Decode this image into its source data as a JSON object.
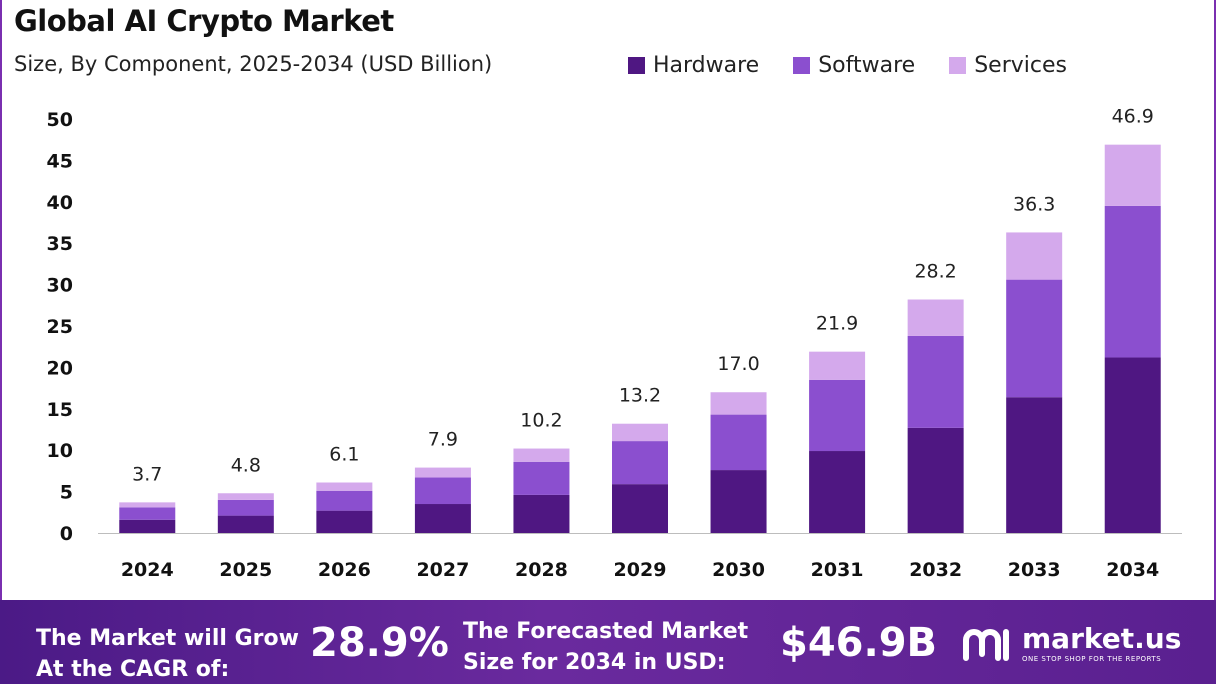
{
  "header": {
    "title": "Global AI Crypto Market",
    "subtitle": "Size, By Component, 2025-2034 (USD Billion)"
  },
  "chart_data": {
    "type": "bar",
    "stacked": true,
    "title": "Global AI Crypto Market",
    "subtitle": "Size, By Component, 2025-2034 (USD Billion)",
    "categories": [
      "2024",
      "2025",
      "2026",
      "2027",
      "2028",
      "2029",
      "2030",
      "2031",
      "2032",
      "2033",
      "2034"
    ],
    "series": [
      {
        "name": "Hardware",
        "color": "#4f1782",
        "values": [
          1.6,
          2.1,
          2.7,
          3.5,
          4.6,
          5.9,
          7.6,
          9.9,
          12.7,
          16.4,
          21.2
        ]
      },
      {
        "name": "Software",
        "color": "#8b4fcf",
        "values": [
          1.5,
          1.9,
          2.4,
          3.2,
          4.0,
          5.2,
          6.7,
          8.6,
          11.1,
          14.2,
          18.3
        ]
      },
      {
        "name": "Services",
        "color": "#d4a9ec",
        "values": [
          0.6,
          0.8,
          1.0,
          1.2,
          1.6,
          2.1,
          2.7,
          3.4,
          4.4,
          5.7,
          7.4
        ]
      }
    ],
    "totals": [
      "3.7",
      "4.8",
      "6.1",
      "7.9",
      "10.2",
      "13.2",
      "17.0",
      "21.9",
      "28.2",
      "36.3",
      "46.9"
    ],
    "yticks": [
      "0",
      "5",
      "10",
      "15",
      "20",
      "25",
      "30",
      "35",
      "40",
      "45",
      "50"
    ],
    "ylim": [
      0,
      50
    ],
    "xlabel": "",
    "ylabel": "",
    "grid": false,
    "legend_position": "top-right"
  },
  "footer": {
    "cagr_label_1": "The Market will Grow",
    "cagr_label_2": "At the CAGR of:",
    "cagr_value": "28.9%",
    "forecast_label_1": "The Forecasted Market",
    "forecast_label_2": "Size for 2034 in USD:",
    "forecast_value": "$46.9B",
    "logo_name": "market.us",
    "logo_tagline": "ONE STOP SHOP FOR THE REPORTS"
  }
}
